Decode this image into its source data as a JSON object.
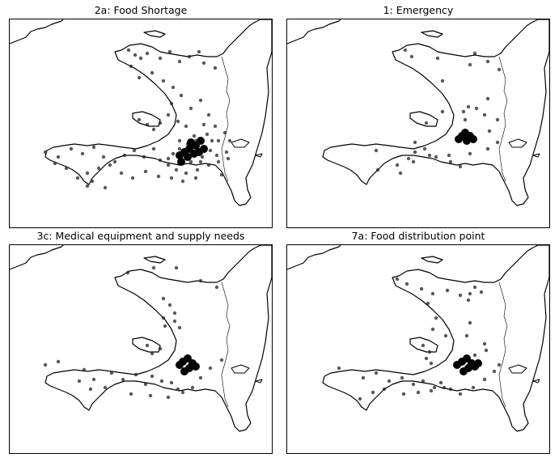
{
  "figure": {
    "panels": [
      {
        "id": "food-shortage",
        "title": "2a: Food Shortage",
        "points": [
          [
            147,
            38
          ],
          [
            155,
            44
          ],
          [
            162,
            48
          ],
          [
            170,
            42
          ],
          [
            186,
            48
          ],
          [
            198,
            40
          ],
          [
            210,
            52
          ],
          [
            222,
            46
          ],
          [
            234,
            40
          ],
          [
            240,
            54
          ],
          [
            254,
            60
          ],
          [
            150,
            58
          ],
          [
            160,
            72
          ],
          [
            176,
            66
          ],
          [
            190,
            76
          ],
          [
            202,
            84
          ],
          [
            212,
            94
          ],
          [
            200,
            104
          ],
          [
            196,
            118
          ],
          [
            208,
            126
          ],
          [
            218,
            132
          ],
          [
            224,
            110
          ],
          [
            236,
            100
          ],
          [
            246,
            118
          ],
          [
            254,
            132
          ],
          [
            244,
            142
          ],
          [
            230,
            150
          ],
          [
            220,
            154
          ],
          [
            210,
            160
          ],
          [
            202,
            166
          ],
          [
            196,
            172
          ],
          [
            214,
            174
          ],
          [
            226,
            168
          ],
          [
            232,
            160
          ],
          [
            238,
            170
          ],
          [
            248,
            162
          ],
          [
            258,
            150
          ],
          [
            266,
            140
          ],
          [
            272,
            150
          ],
          [
            268,
            164
          ],
          [
            160,
            124
          ],
          [
            170,
            130
          ],
          [
            178,
            136
          ],
          [
            186,
            128
          ],
          [
            44,
            164
          ],
          [
            60,
            170
          ],
          [
            76,
            160
          ],
          [
            90,
            166
          ],
          [
            104,
            158
          ],
          [
            116,
            170
          ],
          [
            130,
            176
          ],
          [
            142,
            168
          ],
          [
            154,
            162
          ],
          [
            166,
            170
          ],
          [
            178,
            160
          ],
          [
            186,
            174
          ],
          [
            196,
            180
          ],
          [
            206,
            186
          ],
          [
            218,
            190
          ],
          [
            232,
            186
          ],
          [
            246,
            180
          ],
          [
            258,
            176
          ],
          [
            270,
            172
          ],
          [
            96,
            190
          ],
          [
            110,
            184
          ],
          [
            124,
            180
          ],
          [
            138,
            190
          ],
          [
            152,
            196
          ],
          [
            168,
            188
          ],
          [
            184,
            194
          ],
          [
            200,
            196
          ],
          [
            214,
            200
          ],
          [
            102,
            200
          ],
          [
            118,
            208
          ],
          [
            96,
            206
          ],
          [
            56,
            178
          ],
          [
            70,
            184
          ],
          [
            84,
            196
          ],
          [
            230,
            196
          ],
          [
            262,
            192
          ],
          [
            210,
            150
          ],
          [
            218,
            162
          ],
          [
            228,
            144
          ],
          [
            240,
            130
          ],
          [
            250,
            150
          ],
          [
            256,
            168
          ],
          [
            224,
            176
          ],
          [
            236,
            176
          ]
        ],
        "cluster": [
          [
            210,
            168
          ],
          [
            216,
            164
          ],
          [
            222,
            160
          ],
          [
            228,
            166
          ],
          [
            234,
            164
          ],
          [
            240,
            160
          ],
          [
            224,
            152
          ],
          [
            230,
            156
          ],
          [
            236,
            150
          ],
          [
            220,
            170
          ],
          [
            212,
            176
          ]
        ]
      },
      {
        "id": "emergency",
        "title": "1: Emergency",
        "points": [
          [
            146,
            38
          ],
          [
            154,
            46
          ],
          [
            186,
            48
          ],
          [
            232,
            42
          ],
          [
            248,
            52
          ],
          [
            192,
            76
          ],
          [
            226,
            56
          ],
          [
            262,
            62
          ],
          [
            224,
            108
          ],
          [
            218,
            114
          ],
          [
            234,
            110
          ],
          [
            220,
            124
          ],
          [
            248,
            98
          ],
          [
            244,
            118
          ],
          [
            260,
            124
          ],
          [
            172,
            128
          ],
          [
            192,
            114
          ],
          [
            158,
            152
          ],
          [
            170,
            160
          ],
          [
            158,
            164
          ],
          [
            110,
            162
          ],
          [
            136,
            180
          ],
          [
            150,
            172
          ],
          [
            200,
            168
          ],
          [
            226,
            166
          ],
          [
            248,
            160
          ],
          [
            260,
            152
          ],
          [
            250,
            138
          ],
          [
            112,
            186
          ],
          [
            140,
            190
          ],
          [
            156,
            176
          ],
          [
            176,
            168
          ],
          [
            184,
            170
          ],
          [
            202,
            176
          ],
          [
            214,
            182
          ]
        ],
        "cluster": [
          [
            212,
            148
          ],
          [
            216,
            144
          ],
          [
            220,
            140
          ],
          [
            226,
            144
          ],
          [
            222,
            150
          ],
          [
            230,
            148
          ]
        ]
      },
      {
        "id": "medical",
        "title": "3c: Medical equipment and supply needs",
        "points": [
          [
            146,
            34
          ],
          [
            178,
            28
          ],
          [
            206,
            28
          ],
          [
            236,
            44
          ],
          [
            256,
            52
          ],
          [
            190,
            66
          ],
          [
            198,
            74
          ],
          [
            204,
            84
          ],
          [
            204,
            94
          ],
          [
            210,
            102
          ],
          [
            190,
            90
          ],
          [
            192,
            100
          ],
          [
            170,
            124
          ],
          [
            176,
            134
          ],
          [
            186,
            128
          ],
          [
            44,
            148
          ],
          [
            60,
            144
          ],
          [
            92,
            154
          ],
          [
            104,
            166
          ],
          [
            126,
            158
          ],
          [
            140,
            166
          ],
          [
            156,
            160
          ],
          [
            168,
            172
          ],
          [
            176,
            162
          ],
          [
            188,
            168
          ],
          [
            200,
            170
          ],
          [
            208,
            178
          ],
          [
            214,
            182
          ],
          [
            226,
            176
          ],
          [
            236,
            164
          ],
          [
            248,
            152
          ],
          [
            262,
            142
          ],
          [
            86,
            168
          ],
          [
            100,
            178
          ],
          [
            118,
            176
          ],
          [
            150,
            184
          ],
          [
            174,
            186
          ],
          [
            196,
            188
          ]
        ],
        "cluster": [
          [
            210,
            148
          ],
          [
            214,
            144
          ],
          [
            220,
            140
          ],
          [
            226,
            146
          ],
          [
            222,
            152
          ],
          [
            230,
            150
          ],
          [
            216,
            156
          ]
        ]
      },
      {
        "id": "food-distribution",
        "title": "7a: Food distribution point",
        "points": [
          [
            136,
            42
          ],
          [
            148,
            48
          ],
          [
            166,
            54
          ],
          [
            180,
            60
          ],
          [
            198,
            56
          ],
          [
            214,
            62
          ],
          [
            226,
            60
          ],
          [
            232,
            52
          ],
          [
            240,
            58
          ],
          [
            224,
            68
          ],
          [
            174,
            72
          ],
          [
            184,
            90
          ],
          [
            180,
            104
          ],
          [
            196,
            112
          ],
          [
            226,
            96
          ],
          [
            222,
            112
          ],
          [
            244,
            122
          ],
          [
            232,
            136
          ],
          [
            246,
            130
          ],
          [
            168,
            124
          ],
          [
            176,
            132
          ],
          [
            172,
            140
          ],
          [
            178,
            146
          ],
          [
            64,
            152
          ],
          [
            94,
            164
          ],
          [
            110,
            158
          ],
          [
            126,
            168
          ],
          [
            142,
            164
          ],
          [
            156,
            172
          ],
          [
            168,
            168
          ],
          [
            182,
            176
          ],
          [
            190,
            170
          ],
          [
            202,
            178
          ],
          [
            214,
            184
          ],
          [
            230,
            176
          ],
          [
            244,
            166
          ],
          [
            256,
            156
          ],
          [
            262,
            148
          ],
          [
            90,
            190
          ],
          [
            106,
            182
          ],
          [
            120,
            178
          ],
          [
            144,
            184
          ],
          [
            162,
            182
          ],
          [
            178,
            180
          ],
          [
            194,
            176
          ]
        ],
        "cluster": [
          [
            210,
            148
          ],
          [
            216,
            144
          ],
          [
            222,
            140
          ],
          [
            228,
            146
          ],
          [
            224,
            152
          ],
          [
            232,
            150
          ],
          [
            218,
            156
          ],
          [
            236,
            146
          ]
        ]
      }
    ]
  }
}
